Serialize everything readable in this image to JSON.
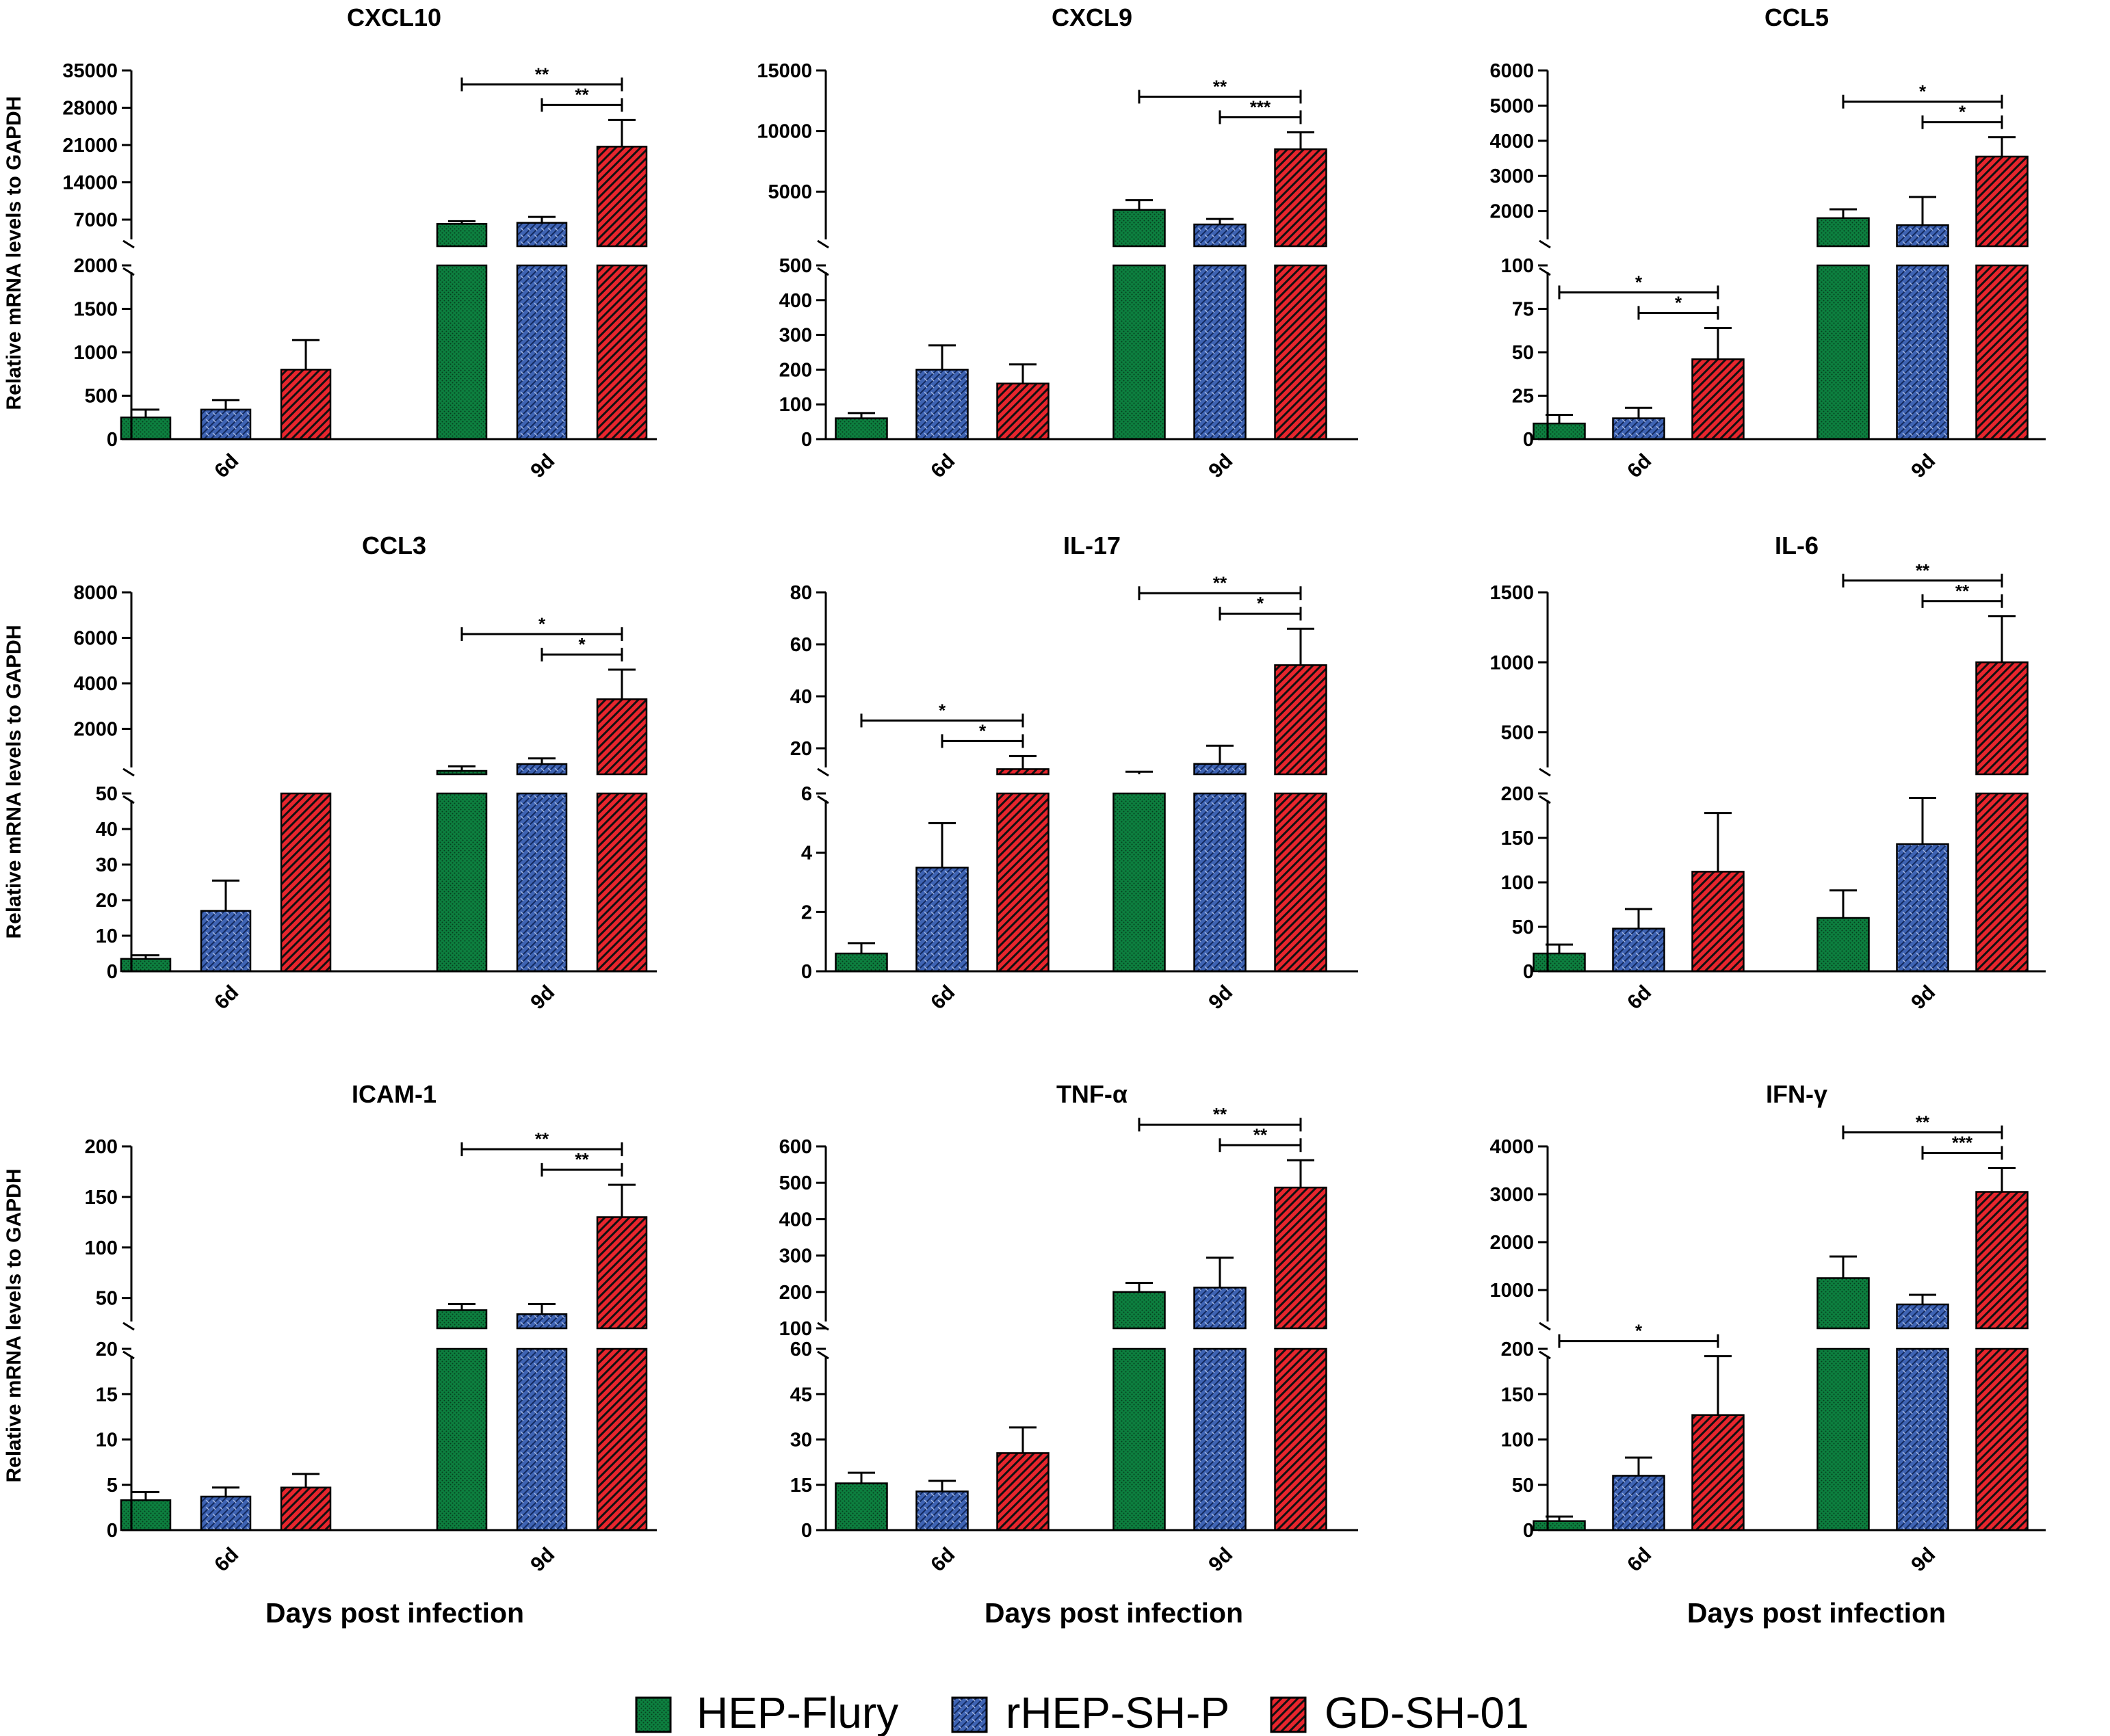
{
  "colors": {
    "HEP-Flury": "#0d7f3f",
    "rHEP-SH-P": "#3e63b3",
    "GD-SH-01": "#e8252d"
  },
  "legend": {
    "items": [
      "HEP-Flury",
      "rHEP-SH-P",
      "GD-SH-01"
    ]
  },
  "y_axis_label": "Relative mRNA levels to GAPDH",
  "x_axis_label": "Days post infection",
  "chart_data": [
    {
      "type": "bar",
      "title": "CXCL10",
      "categories": [
        "6d",
        "9d"
      ],
      "series_names": [
        "HEP-Flury",
        "rHEP-SH-P",
        "GD-SH-01"
      ],
      "values": [
        [
          250,
          340,
          800
        ],
        [
          6200,
          6400,
          20700
        ]
      ],
      "errors": [
        [
          90,
          110,
          340
        ],
        [
          500,
          1100,
          5000
        ]
      ],
      "lower_segment": {
        "range": [
          0,
          2000
        ],
        "ticks": [
          0,
          500,
          1000,
          1500,
          2000
        ]
      },
      "upper_segment": {
        "range": [
          2000,
          35000
        ],
        "ticks": [
          7000,
          14000,
          21000,
          28000,
          35000
        ]
      },
      "significance": [
        {
          "group": "9d",
          "from": "HEP-Flury",
          "to": "GD-SH-01",
          "label": "**"
        },
        {
          "group": "9d",
          "from": "rHEP-SH-P",
          "to": "GD-SH-01",
          "label": "**"
        }
      ]
    },
    {
      "type": "bar",
      "title": "CXCL9",
      "categories": [
        "6d",
        "9d"
      ],
      "series_names": [
        "HEP-Flury",
        "rHEP-SH-P",
        "GD-SH-01"
      ],
      "values": [
        [
          60,
          200,
          160
        ],
        [
          3500,
          2300,
          8500
        ]
      ],
      "errors": [
        [
          15,
          70,
          55
        ],
        [
          800,
          450,
          1400
        ]
      ],
      "lower_segment": {
        "range": [
          0,
          500
        ],
        "ticks": [
          0,
          100,
          200,
          300,
          400,
          500
        ]
      },
      "upper_segment": {
        "range": [
          500,
          15000
        ],
        "ticks": [
          5000,
          10000,
          15000
        ]
      },
      "significance": [
        {
          "group": "9d",
          "from": "HEP-Flury",
          "to": "GD-SH-01",
          "label": "**"
        },
        {
          "group": "9d",
          "from": "rHEP-SH-P",
          "to": "GD-SH-01",
          "label": "***"
        }
      ]
    },
    {
      "type": "bar",
      "title": "CCL5",
      "categories": [
        "6d",
        "9d"
      ],
      "series_names": [
        "HEP-Flury",
        "rHEP-SH-P",
        "GD-SH-01"
      ],
      "values": [
        [
          9,
          12,
          46
        ],
        [
          1800,
          1600,
          3550
        ]
      ],
      "errors": [
        [
          5,
          6,
          18
        ],
        [
          250,
          800,
          550
        ]
      ],
      "lower_segment": {
        "range": [
          0,
          100
        ],
        "ticks": [
          0,
          25,
          50,
          75,
          100
        ]
      },
      "upper_segment": {
        "range": [
          1000,
          6000
        ],
        "ticks": [
          2000,
          3000,
          4000,
          5000,
          6000
        ]
      },
      "significance": [
        {
          "group": "6d",
          "from": "HEP-Flury",
          "to": "GD-SH-01",
          "label": "*"
        },
        {
          "group": "6d",
          "from": "rHEP-SH-P",
          "to": "GD-SH-01",
          "label": "*"
        },
        {
          "group": "9d",
          "from": "HEP-Flury",
          "to": "GD-SH-01",
          "label": "*"
        },
        {
          "group": "9d",
          "from": "rHEP-SH-P",
          "to": "GD-SH-01",
          "label": "*"
        }
      ]
    },
    {
      "type": "bar",
      "title": "CCL3",
      "categories": [
        "6d",
        "9d"
      ],
      "series_names": [
        "HEP-Flury",
        "rHEP-SH-P",
        "GD-SH-01"
      ],
      "values": [
        [
          3.5,
          17,
          50
        ],
        [
          150,
          450,
          3300
        ]
      ],
      "errors": [
        [
          1,
          8.5,
          0
        ],
        [
          200,
          250,
          1300
        ]
      ],
      "lower_segment": {
        "range": [
          0,
          50
        ],
        "ticks": [
          0,
          10,
          20,
          30,
          40,
          50
        ]
      },
      "upper_segment": {
        "range": [
          0,
          8000
        ],
        "ticks": [
          2000,
          4000,
          6000,
          8000
        ]
      },
      "significance": [
        {
          "group": "9d",
          "from": "HEP-Flury",
          "to": "GD-SH-01",
          "label": "*"
        },
        {
          "group": "9d",
          "from": "rHEP-SH-P",
          "to": "GD-SH-01",
          "label": "*"
        }
      ]
    },
    {
      "type": "bar",
      "title": "IL-17",
      "categories": [
        "6d",
        "9d"
      ],
      "series_names": [
        "HEP-Flury",
        "rHEP-SH-P",
        "GD-SH-01"
      ],
      "values": [
        [
          0.6,
          3.5,
          12
        ],
        [
          9,
          14,
          52
        ]
      ],
      "errors": [
        [
          0.35,
          1.5,
          5
        ],
        [
          2,
          7,
          14
        ]
      ],
      "lower_segment": {
        "range": [
          0,
          6
        ],
        "ticks": [
          0,
          2,
          4,
          6
        ]
      },
      "upper_segment": {
        "range": [
          10,
          80
        ],
        "ticks": [
          20,
          40,
          60,
          80
        ]
      },
      "significance": [
        {
          "group": "6d",
          "from": "HEP-Flury",
          "to": "GD-SH-01",
          "label": "*"
        },
        {
          "group": "6d",
          "from": "rHEP-SH-P",
          "to": "GD-SH-01",
          "label": "*"
        },
        {
          "group": "9d",
          "from": "HEP-Flury",
          "to": "GD-SH-01",
          "label": "**"
        },
        {
          "group": "9d",
          "from": "rHEP-SH-P",
          "to": "GD-SH-01",
          "label": "*"
        }
      ]
    },
    {
      "type": "bar",
      "title": "IL-6",
      "categories": [
        "6d",
        "9d"
      ],
      "series_names": [
        "HEP-Flury",
        "rHEP-SH-P",
        "GD-SH-01"
      ],
      "values": [
        [
          20,
          48,
          112
        ],
        [
          60,
          143,
          1000
        ]
      ],
      "errors": [
        [
          10,
          22,
          66
        ],
        [
          31,
          52,
          330
        ]
      ],
      "lower_segment": {
        "range": [
          0,
          200
        ],
        "ticks": [
          0,
          50,
          100,
          150,
          200
        ]
      },
      "upper_segment": {
        "range": [
          200,
          1500
        ],
        "ticks": [
          500,
          1000,
          1500
        ]
      },
      "significance": [
        {
          "group": "9d",
          "from": "HEP-Flury",
          "to": "GD-SH-01",
          "label": "**"
        },
        {
          "group": "9d",
          "from": "rHEP-SH-P",
          "to": "GD-SH-01",
          "label": "**"
        }
      ]
    },
    {
      "type": "bar",
      "title": "ICAM-1",
      "categories": [
        "6d",
        "9d"
      ],
      "series_names": [
        "HEP-Flury",
        "rHEP-SH-P",
        "GD-SH-01"
      ],
      "values": [
        [
          3.3,
          3.7,
          4.7
        ],
        [
          38,
          34,
          130
        ]
      ],
      "errors": [
        [
          0.9,
          1,
          1.5
        ],
        [
          6,
          10,
          32
        ]
      ],
      "lower_segment": {
        "range": [
          0,
          20
        ],
        "ticks": [
          0,
          5,
          10,
          15,
          20
        ]
      },
      "upper_segment": {
        "range": [
          20,
          200
        ],
        "ticks": [
          50,
          100,
          150,
          200
        ]
      },
      "significance": [
        {
          "group": "9d",
          "from": "HEP-Flury",
          "to": "GD-SH-01",
          "label": "**"
        },
        {
          "group": "9d",
          "from": "rHEP-SH-P",
          "to": "GD-SH-01",
          "label": "**"
        }
      ]
    },
    {
      "type": "bar",
      "title": "TNF-α",
      "categories": [
        "6d",
        "9d"
      ],
      "series_names": [
        "HEP-Flury",
        "rHEP-SH-P",
        "GD-SH-01"
      ],
      "values": [
        [
          15.5,
          12.8,
          25.5
        ],
        [
          200,
          212,
          487
        ]
      ],
      "errors": [
        [
          3.5,
          3.5,
          8.5
        ],
        [
          25,
          82,
          75
        ]
      ],
      "lower_segment": {
        "range": [
          0,
          60
        ],
        "ticks": [
          0,
          15,
          30,
          45,
          60
        ]
      },
      "upper_segment": {
        "range": [
          100,
          600
        ],
        "ticks": [
          100,
          200,
          300,
          400,
          500,
          600
        ]
      },
      "significance": [
        {
          "group": "9d",
          "from": "HEP-Flury",
          "to": "GD-SH-01",
          "label": "**"
        },
        {
          "group": "9d",
          "from": "rHEP-SH-P",
          "to": "GD-SH-01",
          "label": "**"
        }
      ]
    },
    {
      "type": "bar",
      "title": "IFN-γ",
      "categories": [
        "6d",
        "9d"
      ],
      "series_names": [
        "HEP-Flury",
        "rHEP-SH-P",
        "GD-SH-01"
      ],
      "values": [
        [
          10,
          60,
          127
        ],
        [
          1250,
          700,
          3050
        ]
      ],
      "errors": [
        [
          5,
          20,
          65
        ],
        [
          450,
          200,
          500
        ]
      ],
      "lower_segment": {
        "range": [
          0,
          200
        ],
        "ticks": [
          0,
          50,
          100,
          150,
          200
        ]
      },
      "upper_segment": {
        "range": [
          200,
          4000
        ],
        "ticks": [
          1000,
          2000,
          3000,
          4000
        ]
      },
      "significance": [
        {
          "group": "6d",
          "from": "HEP-Flury",
          "to": "GD-SH-01",
          "label": "*"
        },
        {
          "group": "9d",
          "from": "HEP-Flury",
          "to": "GD-SH-01",
          "label": "**"
        },
        {
          "group": "9d",
          "from": "rHEP-SH-P",
          "to": "GD-SH-01",
          "label": "***"
        }
      ]
    }
  ]
}
